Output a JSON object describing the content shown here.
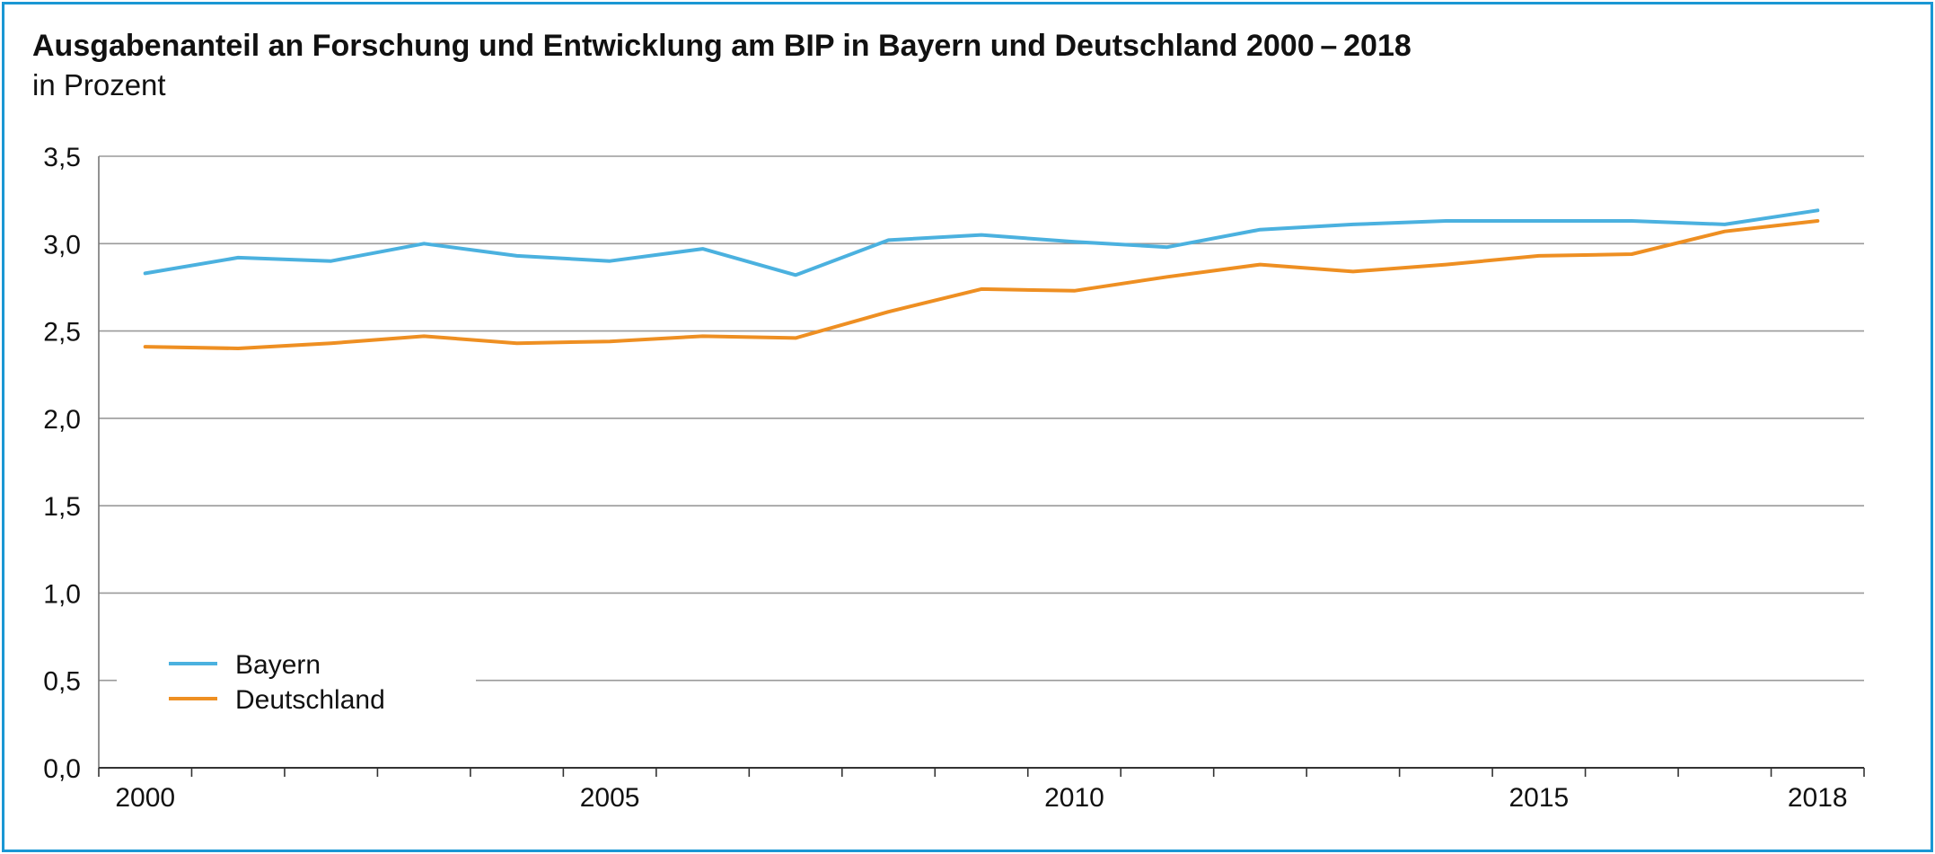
{
  "chart_data": {
    "type": "line",
    "title": "Ausgabenanteil an Forschung und Entwicklung am BIP in Bayern und Deutschland 2000 – 2018",
    "subtitle": "in Prozent",
    "xlabel": "",
    "ylabel": "",
    "x": [
      2000,
      2001,
      2002,
      2003,
      2004,
      2005,
      2006,
      2007,
      2008,
      2009,
      2010,
      2011,
      2012,
      2013,
      2014,
      2015,
      2016,
      2017,
      2018
    ],
    "xticks": [
      2000,
      2005,
      2010,
      2015,
      2018
    ],
    "xtick_labels": [
      "2000",
      "2005",
      "2010",
      "2015",
      "2018"
    ],
    "ylim": [
      0,
      3.5
    ],
    "yticks": [
      0,
      0.5,
      1.0,
      1.5,
      2.0,
      2.5,
      3.0,
      3.5
    ],
    "ytick_labels": [
      "0,0",
      "0,5",
      "1,0",
      "1,5",
      "2,0",
      "2,5",
      "3,0",
      "3,5"
    ],
    "grid": true,
    "legend_position": "bottom-left",
    "series": [
      {
        "name": "Bayern",
        "color": "#4bb1df",
        "values": [
          2.83,
          2.92,
          2.9,
          3.0,
          2.93,
          2.9,
          2.97,
          2.82,
          3.02,
          3.05,
          3.01,
          2.98,
          3.08,
          3.11,
          3.13,
          3.13,
          3.13,
          3.11,
          3.19
        ]
      },
      {
        "name": "Deutschland",
        "color": "#ee8f22",
        "values": [
          2.41,
          2.4,
          2.43,
          2.47,
          2.43,
          2.44,
          2.47,
          2.46,
          2.61,
          2.74,
          2.73,
          2.81,
          2.88,
          2.84,
          2.88,
          2.93,
          2.94,
          3.07,
          3.13
        ]
      }
    ]
  }
}
